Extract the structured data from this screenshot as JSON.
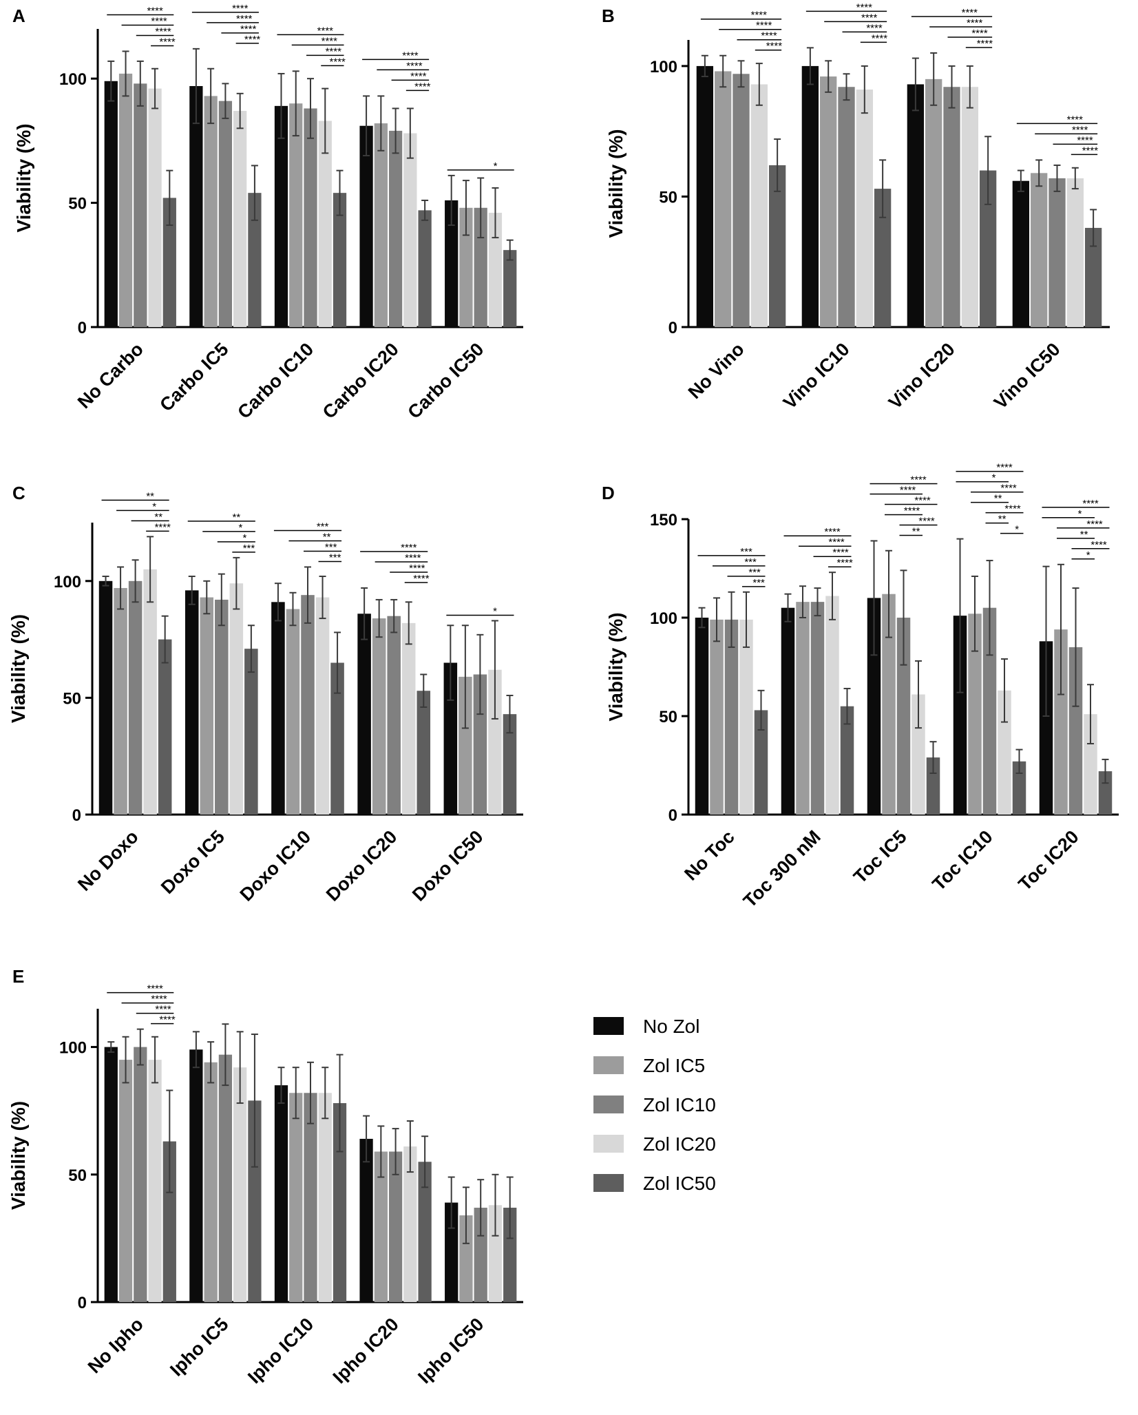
{
  "ylabel": "Viability (%)",
  "legend": {
    "items": [
      {
        "label": "No Zol",
        "color": "#0b0b0b"
      },
      {
        "label": "Zol IC5",
        "color": "#9c9c9c"
      },
      {
        "label": "Zol IC10",
        "color": "#808080"
      },
      {
        "label": "Zol IC20",
        "color": "#d8d8d8"
      },
      {
        "label": "Zol IC50",
        "color": "#5e5e5e"
      }
    ]
  },
  "chart_data": [
    {
      "panel": "A",
      "type": "bar",
      "ylabel": "Viability (%)",
      "ylim": [
        0,
        120
      ],
      "yticks": [
        0,
        50,
        100
      ],
      "categories": [
        "No Carbo",
        "Carbo IC5",
        "Carbo IC10",
        "Carbo IC20",
        "Carbo IC50"
      ],
      "series": [
        {
          "name": "No Zol",
          "values": [
            99,
            97,
            89,
            81,
            51
          ],
          "errors": [
            8,
            15,
            13,
            12,
            10
          ]
        },
        {
          "name": "Zol IC5",
          "values": [
            102,
            93,
            90,
            82,
            48
          ],
          "errors": [
            9,
            11,
            13,
            11,
            11
          ]
        },
        {
          "name": "Zol IC10",
          "values": [
            98,
            91,
            88,
            79,
            48
          ],
          "errors": [
            9,
            7,
            12,
            9,
            12
          ]
        },
        {
          "name": "Zol IC20",
          "values": [
            96,
            87,
            83,
            78,
            46
          ],
          "errors": [
            8,
            7,
            13,
            10,
            10
          ]
        },
        {
          "name": "Zol IC50",
          "values": [
            52,
            54,
            54,
            47,
            31
          ],
          "errors": [
            11,
            11,
            9,
            4,
            4
          ]
        }
      ],
      "significance": [
        {
          "from": 0,
          "to": 4,
          "label": "****"
        },
        {
          "from": 1,
          "to": 4,
          "label": "****"
        },
        {
          "from": 2,
          "to": 4,
          "label": "****"
        },
        {
          "from": 3,
          "to": 4,
          "label": "****"
        },
        {
          "from": 5,
          "to": 9,
          "label": "****"
        },
        {
          "from": 6,
          "to": 9,
          "label": "****"
        },
        {
          "from": 7,
          "to": 9,
          "label": "****"
        },
        {
          "from": 8,
          "to": 9,
          "label": "****"
        },
        {
          "from": 10,
          "to": 14,
          "label": "****"
        },
        {
          "from": 11,
          "to": 14,
          "label": "****"
        },
        {
          "from": 12,
          "to": 14,
          "label": "****"
        },
        {
          "from": 13,
          "to": 14,
          "label": "****"
        },
        {
          "from": 15,
          "to": 19,
          "label": "****"
        },
        {
          "from": 16,
          "to": 19,
          "label": "****"
        },
        {
          "from": 17,
          "to": 19,
          "label": "****"
        },
        {
          "from": 18,
          "to": 19,
          "label": "****"
        },
        {
          "from": 20,
          "to": 24,
          "label": "*"
        }
      ]
    },
    {
      "panel": "B",
      "type": "bar",
      "ylabel": "Viability (%)",
      "ylim": [
        0,
        110
      ],
      "yticks": [
        0,
        50,
        100
      ],
      "categories": [
        "No Vino",
        "Vino IC10",
        "Vino IC20",
        "Vino IC50"
      ],
      "series": [
        {
          "name": "No Zol",
          "values": [
            100,
            100,
            93,
            56
          ],
          "errors": [
            4,
            7,
            10,
            4
          ]
        },
        {
          "name": "Zol IC5",
          "values": [
            98,
            96,
            95,
            59
          ],
          "errors": [
            6,
            6,
            10,
            5
          ]
        },
        {
          "name": "Zol IC10",
          "values": [
            97,
            92,
            92,
            57
          ],
          "errors": [
            5,
            5,
            8,
            5
          ]
        },
        {
          "name": "Zol IC20",
          "values": [
            93,
            91,
            92,
            57
          ],
          "errors": [
            8,
            9,
            8,
            4
          ]
        },
        {
          "name": "Zol IC50",
          "values": [
            62,
            53,
            60,
            38
          ],
          "errors": [
            10,
            11,
            13,
            7
          ]
        }
      ],
      "significance": [
        {
          "from": 0,
          "to": 4,
          "label": "****"
        },
        {
          "from": 1,
          "to": 4,
          "label": "****"
        },
        {
          "from": 2,
          "to": 4,
          "label": "****"
        },
        {
          "from": 3,
          "to": 4,
          "label": "****"
        },
        {
          "from": 5,
          "to": 9,
          "label": "****"
        },
        {
          "from": 6,
          "to": 9,
          "label": "****"
        },
        {
          "from": 7,
          "to": 9,
          "label": "****"
        },
        {
          "from": 8,
          "to": 9,
          "label": "****"
        },
        {
          "from": 10,
          "to": 14,
          "label": "****"
        },
        {
          "from": 11,
          "to": 14,
          "label": "****"
        },
        {
          "from": 12,
          "to": 14,
          "label": "****"
        },
        {
          "from": 13,
          "to": 14,
          "label": "****"
        },
        {
          "from": 15,
          "to": 19,
          "label": "****"
        },
        {
          "from": 16,
          "to": 19,
          "label": "****"
        },
        {
          "from": 17,
          "to": 19,
          "label": "****"
        },
        {
          "from": 18,
          "to": 19,
          "label": "****"
        }
      ]
    },
    {
      "panel": "C",
      "type": "bar",
      "ylabel": "Viability (%)",
      "ylim": [
        0,
        125
      ],
      "yticks": [
        0,
        50,
        100
      ],
      "categories": [
        "No Doxo",
        "Doxo IC5",
        "Doxo IC10",
        "Doxo IC20",
        "Doxo IC50"
      ],
      "series": [
        {
          "name": "No Zol",
          "values": [
            100,
            96,
            91,
            86,
            65
          ],
          "errors": [
            2,
            6,
            8,
            11,
            16
          ]
        },
        {
          "name": "Zol IC5",
          "values": [
            97,
            93,
            88,
            84,
            59
          ],
          "errors": [
            9,
            7,
            7,
            8,
            22
          ]
        },
        {
          "name": "Zol IC10",
          "values": [
            100,
            92,
            94,
            85,
            60
          ],
          "errors": [
            9,
            11,
            12,
            7,
            17
          ]
        },
        {
          "name": "Zol IC20",
          "values": [
            105,
            99,
            93,
            82,
            62
          ],
          "errors": [
            14,
            11,
            9,
            9,
            21
          ]
        },
        {
          "name": "Zol IC50",
          "values": [
            75,
            71,
            65,
            53,
            43
          ],
          "errors": [
            10,
            10,
            13,
            7,
            8
          ]
        }
      ],
      "significance": [
        {
          "from": 0,
          "to": 4,
          "label": "**"
        },
        {
          "from": 1,
          "to": 4,
          "label": "*"
        },
        {
          "from": 2,
          "to": 4,
          "label": "**"
        },
        {
          "from": 3,
          "to": 4,
          "label": "****"
        },
        {
          "from": 5,
          "to": 9,
          "label": "**"
        },
        {
          "from": 6,
          "to": 9,
          "label": "*"
        },
        {
          "from": 7,
          "to": 9,
          "label": "*"
        },
        {
          "from": 8,
          "to": 9,
          "label": "***"
        },
        {
          "from": 10,
          "to": 14,
          "label": "***"
        },
        {
          "from": 11,
          "to": 14,
          "label": "**"
        },
        {
          "from": 12,
          "to": 14,
          "label": "***"
        },
        {
          "from": 13,
          "to": 14,
          "label": "***"
        },
        {
          "from": 15,
          "to": 19,
          "label": "****"
        },
        {
          "from": 16,
          "to": 19,
          "label": "****"
        },
        {
          "from": 17,
          "to": 19,
          "label": "****"
        },
        {
          "from": 18,
          "to": 19,
          "label": "****"
        },
        {
          "from": 20,
          "to": 24,
          "label": "*"
        }
      ]
    },
    {
      "panel": "D",
      "type": "bar",
      "ylabel": "Viability (%)",
      "ylim": [
        0,
        150
      ],
      "yticks": [
        0,
        50,
        100,
        150
      ],
      "categories": [
        "No Toc",
        "Toc 300 nM",
        "Toc IC5",
        "Toc IC10",
        "Toc IC20"
      ],
      "series": [
        {
          "name": "No Zol",
          "values": [
            100,
            105,
            110,
            101,
            88
          ],
          "errors": [
            5,
            7,
            29,
            39,
            38
          ]
        },
        {
          "name": "Zol IC5",
          "values": [
            99,
            108,
            112,
            102,
            94
          ],
          "errors": [
            11,
            8,
            22,
            19,
            33
          ]
        },
        {
          "name": "Zol IC10",
          "values": [
            99,
            108,
            100,
            105,
            85
          ],
          "errors": [
            14,
            7,
            24,
            24,
            30
          ]
        },
        {
          "name": "Zol IC20",
          "values": [
            99,
            111,
            61,
            63,
            51
          ],
          "errors": [
            14,
            12,
            17,
            16,
            15
          ]
        },
        {
          "name": "Zol IC50",
          "values": [
            53,
            55,
            29,
            27,
            22
          ],
          "errors": [
            10,
            9,
            8,
            6,
            6
          ]
        }
      ],
      "significance": [
        {
          "from": 0,
          "to": 4,
          "label": "***"
        },
        {
          "from": 1,
          "to": 4,
          "label": "***"
        },
        {
          "from": 2,
          "to": 4,
          "label": "***"
        },
        {
          "from": 3,
          "to": 4,
          "label": "***"
        },
        {
          "from": 5,
          "to": 9,
          "label": "****"
        },
        {
          "from": 6,
          "to": 9,
          "label": "****"
        },
        {
          "from": 7,
          "to": 9,
          "label": "****"
        },
        {
          "from": 8,
          "to": 9,
          "label": "****"
        },
        {
          "from": 10,
          "to": 13,
          "label": "****"
        },
        {
          "from": 10,
          "to": 14,
          "label": "****"
        },
        {
          "from": 11,
          "to": 13,
          "label": "****"
        },
        {
          "from": 11,
          "to": 14,
          "label": "****"
        },
        {
          "from": 12,
          "to": 13,
          "label": "**"
        },
        {
          "from": 12,
          "to": 14,
          "label": "****"
        },
        {
          "from": 15,
          "to": 18,
          "label": "*"
        },
        {
          "from": 15,
          "to": 19,
          "label": "****"
        },
        {
          "from": 16,
          "to": 18,
          "label": "**"
        },
        {
          "from": 16,
          "to": 19,
          "label": "****"
        },
        {
          "from": 17,
          "to": 18,
          "label": "**"
        },
        {
          "from": 17,
          "to": 19,
          "label": "****"
        },
        {
          "from": 18,
          "to": 19,
          "label": "*"
        },
        {
          "from": 20,
          "to": 23,
          "label": "*"
        },
        {
          "from": 20,
          "to": 24,
          "label": "****"
        },
        {
          "from": 21,
          "to": 23,
          "label": "**"
        },
        {
          "from": 21,
          "to": 24,
          "label": "****"
        },
        {
          "from": 22,
          "to": 23,
          "label": "*"
        },
        {
          "from": 22,
          "to": 24,
          "label": "****"
        }
      ]
    },
    {
      "panel": "E",
      "type": "bar",
      "ylabel": "Viability (%)",
      "ylim": [
        0,
        115
      ],
      "yticks": [
        0,
        50,
        100
      ],
      "categories": [
        "No Ipho",
        "Ipho IC5",
        "Ipho IC10",
        "Ipho IC20",
        "Ipho IC50"
      ],
      "series": [
        {
          "name": "No Zol",
          "values": [
            100,
            99,
            85,
            64,
            39
          ],
          "errors": [
            2,
            7,
            7,
            9,
            10
          ]
        },
        {
          "name": "Zol IC5",
          "values": [
            95,
            94,
            82,
            59,
            34
          ],
          "errors": [
            9,
            8,
            10,
            10,
            11
          ]
        },
        {
          "name": "Zol IC10",
          "values": [
            100,
            97,
            82,
            59,
            37
          ],
          "errors": [
            7,
            12,
            12,
            9,
            11
          ]
        },
        {
          "name": "Zol IC20",
          "values": [
            95,
            92,
            82,
            61,
            38
          ],
          "errors": [
            9,
            14,
            10,
            10,
            12
          ]
        },
        {
          "name": "Zol IC50",
          "values": [
            63,
            79,
            78,
            55,
            37
          ],
          "errors": [
            20,
            26,
            19,
            10,
            12
          ]
        }
      ],
      "significance": [
        {
          "from": 0,
          "to": 4,
          "label": "****"
        },
        {
          "from": 1,
          "to": 4,
          "label": "****"
        },
        {
          "from": 2,
          "to": 4,
          "label": "****"
        },
        {
          "from": 3,
          "to": 4,
          "label": "****"
        }
      ]
    }
  ]
}
